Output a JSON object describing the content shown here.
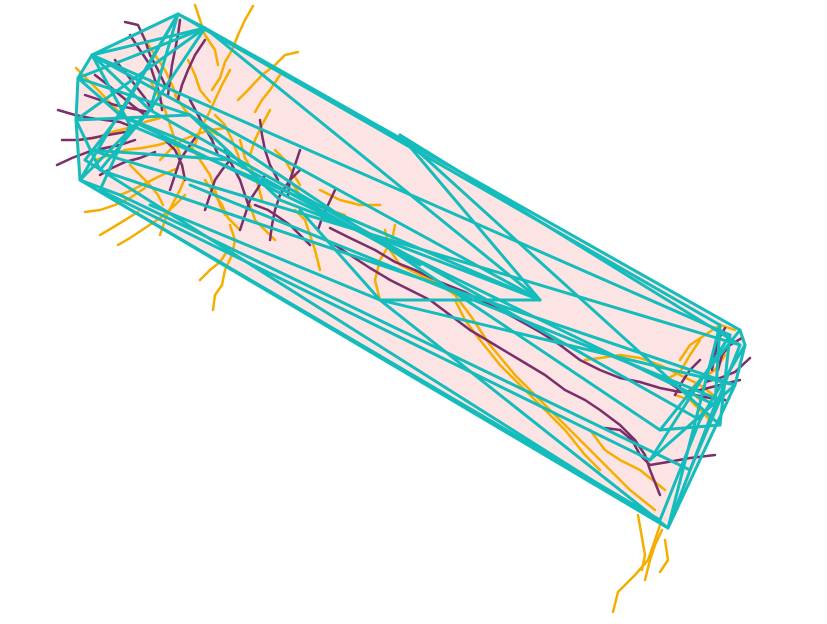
{
  "diagram": {
    "kind": "3d-convex-hull-with-neuron-tracings",
    "colors": {
      "background": "#ffffff",
      "hull_fill": "#fde4e4",
      "hull_edge": "#14bcbc",
      "orange_fibers": "#f5ae00",
      "purple_fibers": "#7a2f6b"
    },
    "layers": [
      "hull-fill",
      "orange-fibers",
      "purple-fibers",
      "hull-wireframe"
    ]
  }
}
